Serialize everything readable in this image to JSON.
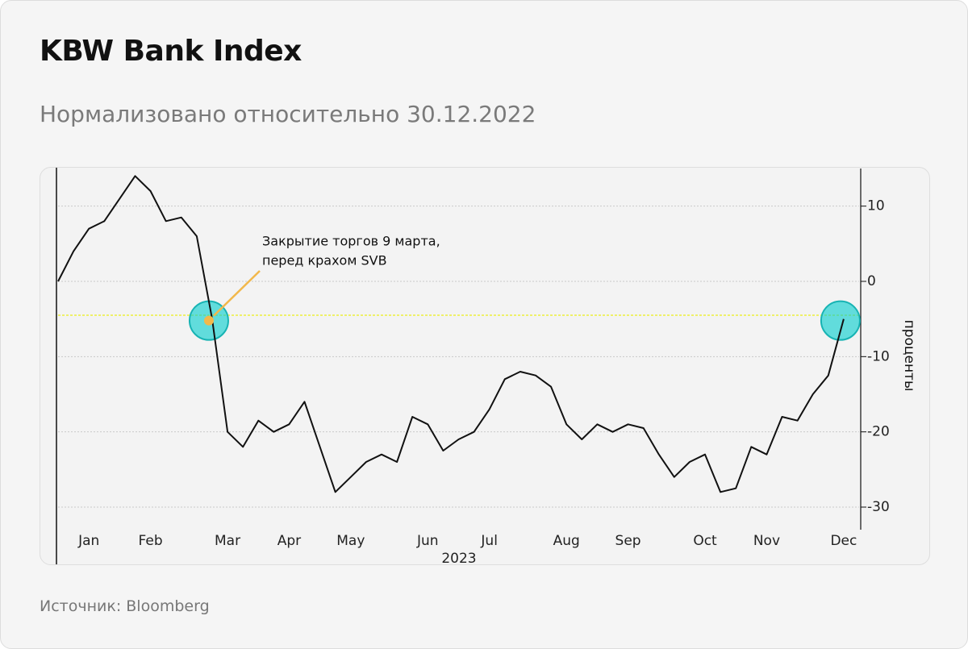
{
  "chart_data": {
    "type": "line",
    "title": "KBW Bank Index",
    "subtitle": "Нормализовано относительно 30.12.2022",
    "source": "Источник: Bloomberg",
    "x_label": "2023",
    "y_label": "проценты",
    "categories": [
      null,
      null,
      "Jan",
      null,
      null,
      null,
      "Feb",
      null,
      null,
      null,
      null,
      "Mar",
      null,
      null,
      null,
      "Apr",
      null,
      null,
      null,
      "May",
      null,
      null,
      null,
      null,
      "Jun",
      null,
      null,
      null,
      "Jul",
      null,
      null,
      null,
      null,
      "Aug",
      null,
      null,
      null,
      "Sep",
      null,
      null,
      null,
      null,
      "Oct",
      null,
      null,
      null,
      "Nov",
      null,
      null,
      null,
      null,
      "Dec",
      null
    ],
    "values": [
      0,
      4,
      7,
      8,
      11,
      14,
      12,
      8,
      8.5,
      6,
      -5,
      -20,
      -22,
      -18.5,
      -20,
      -19,
      -16,
      -22,
      -28,
      -26,
      -24,
      -23,
      -24,
      -18,
      -19,
      -22.5,
      -21,
      -20,
      -17,
      -13,
      -12,
      -12.5,
      -14,
      -19,
      -21,
      -19,
      -20,
      -19,
      -19.5,
      -23,
      -26,
      -24,
      -23,
      -28,
      -27.5,
      -22,
      -23,
      -18,
      -18.5,
      -15,
      -12.5,
      -5,
      null
    ],
    "color": "#111111",
    "ylim": [
      -33,
      15
    ],
    "yticks": [
      10,
      0,
      -10,
      -20,
      -30
    ],
    "grid": true,
    "reference_line": {
      "value": -4.5,
      "color": "#eef06a"
    },
    "annotation": {
      "lines": [
        "Закрытие торгов 9 марта,",
        "перед крахом SVB"
      ],
      "index": 10,
      "color": "#f2b84b"
    },
    "highlight_indices": [
      10,
      51
    ]
  }
}
